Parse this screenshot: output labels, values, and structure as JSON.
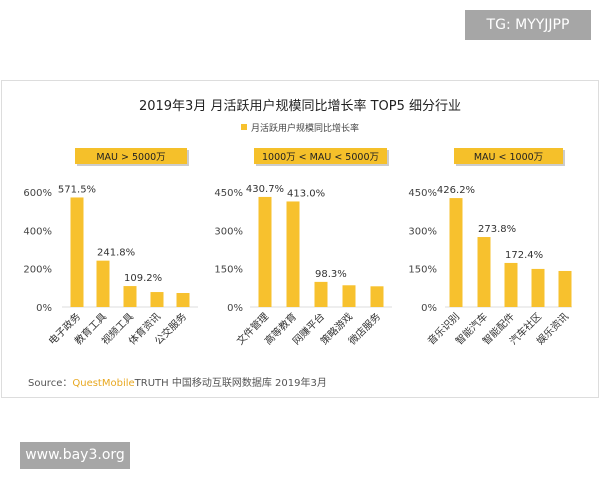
{
  "watermark_top": "TG: MYYJJPP",
  "watermark_bottom": "www.bay3.org",
  "source": {
    "label": "Source：",
    "brand": "QuestMobile",
    "text": "TRUTH 中国移动互联网数据库 2019年3月"
  },
  "colors": {
    "bar": "#f7c12e",
    "badge": "#f5c02a"
  },
  "chart_data": [
    {
      "type": "bar",
      "title": "2019年3月 月活跃用户规模同比增长率 TOP5 细分行业",
      "legend": "月活跃用户规模同比增长率",
      "group": "MAU > 5000万",
      "categories": [
        "电子政务",
        "教育工具",
        "视频工具",
        "体育资讯",
        "公交服务"
      ],
      "values": [
        571.5,
        241.8,
        109.2,
        78,
        73
      ],
      "data_labels": [
        "571.5%",
        "241.8%",
        "109.2%",
        "",
        ""
      ],
      "yticks": [
        "0%",
        "200%",
        "400%",
        "600%"
      ],
      "ylim": [
        0,
        600
      ]
    },
    {
      "type": "bar",
      "group": "1000万 < MAU < 5000万",
      "categories": [
        "文件管理",
        "高等教育",
        "网赚平台",
        "策略游戏",
        "微店服务"
      ],
      "values": [
        430.7,
        413.0,
        98.3,
        85,
        81
      ],
      "data_labels": [
        "430.7%",
        "413.0%",
        "98.3%",
        "",
        ""
      ],
      "yticks": [
        "0%",
        "150%",
        "300%",
        "450%"
      ],
      "ylim": [
        0,
        450
      ]
    },
    {
      "type": "bar",
      "group": "MAU < 1000万",
      "categories": [
        "音乐识别",
        "智能汽车",
        "智能配件",
        "汽车社区",
        "娱乐资讯"
      ],
      "values": [
        426.2,
        273.8,
        172.4,
        149,
        141
      ],
      "data_labels": [
        "426.2%",
        "273.8%",
        "172.4%",
        "",
        ""
      ],
      "yticks": [
        "0%",
        "150%",
        "300%",
        "450%"
      ],
      "ylim": [
        0,
        450
      ]
    }
  ]
}
